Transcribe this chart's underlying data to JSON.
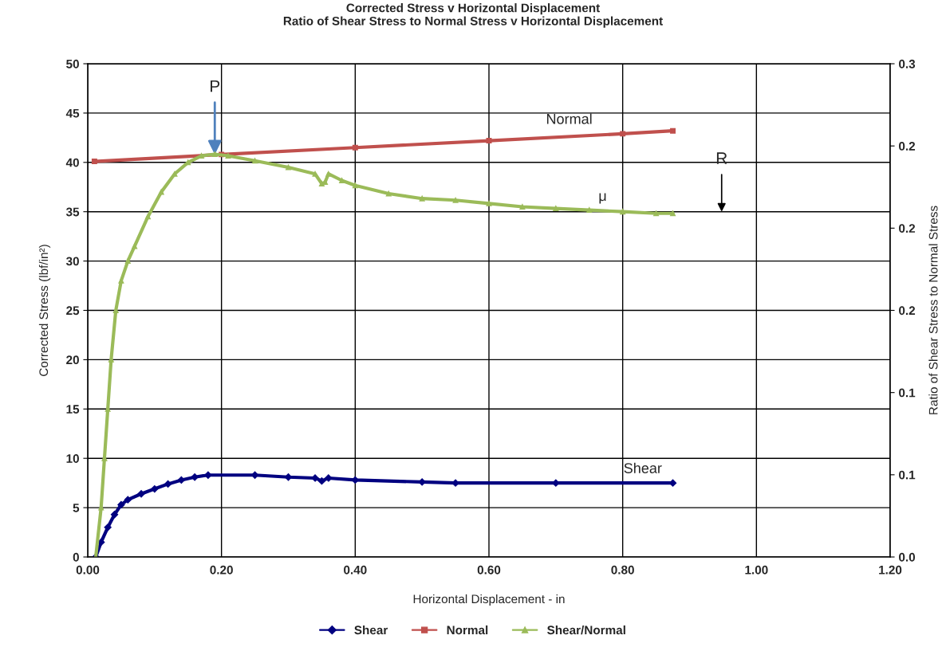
{
  "chart_data": {
    "type": "line",
    "title": "Corrected Stress v Horizontal Displacement\nRatio of Shear Stress to Normal Stress v Horizontal Displacement",
    "xlabel": "Horizontal Displacement - in",
    "ylabel": "Corrected Stress (lbf/in²)",
    "y2label": "Ratio of Shear Stress to Normal Stress",
    "xlim": [
      0,
      1.2
    ],
    "xticks": [
      {
        "value": 0,
        "label": "0.00"
      },
      {
        "value": 0.2,
        "label": "0.20"
      },
      {
        "value": 0.4,
        "label": "0.40"
      },
      {
        "value": 0.6,
        "label": "0.60"
      },
      {
        "value": 0.8,
        "label": "0.80"
      },
      {
        "value": 1.0,
        "label": "1.00"
      },
      {
        "value": 1.2,
        "label": "1.20"
      }
    ],
    "ylim": [
      0,
      50
    ],
    "yticks": [
      0,
      5,
      10,
      15,
      20,
      25,
      30,
      35,
      40,
      45,
      50
    ],
    "y2lim": [
      0,
      0.3
    ],
    "y2ticks": [
      {
        "value": 0,
        "label": "0.0"
      },
      {
        "value": 0.05,
        "label": "0.1"
      },
      {
        "value": 0.1,
        "label": "0.1"
      },
      {
        "value": 0.15,
        "label": "0.2"
      },
      {
        "value": 0.2,
        "label": "0.2"
      },
      {
        "value": 0.25,
        "label": "0.2"
      },
      {
        "value": 0.3,
        "label": "0.3"
      }
    ],
    "grid": true,
    "legend": "bottom",
    "series": [
      {
        "name": "Shear",
        "color": "#000080",
        "marker": "diamond",
        "x": [
          0.012,
          0.02,
          0.03,
          0.04,
          0.05,
          0.06,
          0.08,
          0.1,
          0.12,
          0.14,
          0.16,
          0.18,
          0.25,
          0.3,
          0.34,
          0.35,
          0.36,
          0.4,
          0.5,
          0.55,
          0.7,
          0.875
        ],
        "values": [
          0,
          1.5,
          3,
          4.3,
          5.3,
          5.8,
          6.4,
          6.9,
          7.4,
          7.8,
          8.1,
          8.3,
          8.3,
          8.1,
          8.0,
          7.7,
          8.0,
          7.8,
          7.6,
          7.5,
          7.5,
          7.5
        ]
      },
      {
        "name": "Normal",
        "color": "#c0504d",
        "marker": "square",
        "x": [
          0.01,
          0.2,
          0.4,
          0.6,
          0.8,
          0.875
        ],
        "values": [
          40.1,
          40.8,
          41.5,
          42.2,
          42.9,
          43.2
        ]
      },
      {
        "name": "Shear/Normal",
        "color": "#9bbb59",
        "marker": "triangle",
        "axis": "y2",
        "x": [
          0.012,
          0.02,
          0.025,
          0.03,
          0.035,
          0.042,
          0.05,
          0.06,
          0.07,
          0.09,
          0.11,
          0.13,
          0.15,
          0.17,
          0.19,
          0.21,
          0.25,
          0.3,
          0.34,
          0.35,
          0.355,
          0.36,
          0.38,
          0.4,
          0.45,
          0.5,
          0.55,
          0.6,
          0.65,
          0.7,
          0.75,
          0.8,
          0.85,
          0.875
        ],
        "values": [
          0,
          0.03,
          0.06,
          0.09,
          0.12,
          0.15,
          0.168,
          0.18,
          0.189,
          0.207,
          0.222,
          0.233,
          0.24,
          0.244,
          0.245,
          0.244,
          0.241,
          0.237,
          0.233,
          0.227,
          0.228,
          0.233,
          0.229,
          0.226,
          0.221,
          0.218,
          0.217,
          0.215,
          0.213,
          0.212,
          0.211,
          0.21,
          0.209,
          0.209
        ]
      }
    ],
    "annotations": [
      {
        "text": "P",
        "x": 0.19,
        "y": 40.8
      },
      "R",
      {
        "text": "Normal",
        "x": 0.72,
        "y": 43
      },
      {
        "text": "μ",
        "x": 0.77,
        "y": 35.2
      },
      {
        "text": "Shear",
        "x": 0.83,
        "y": 7.6
      }
    ]
  }
}
